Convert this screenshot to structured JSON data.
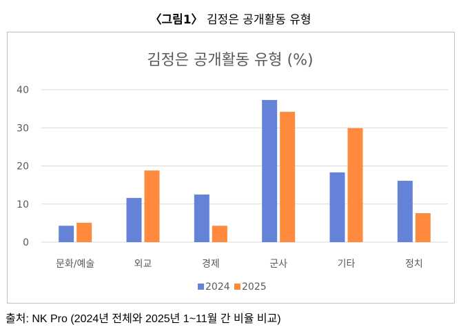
{
  "figure_label": "〈그림1〉",
  "figure_caption": "김정은 공개활동 유형",
  "source": "출처: NK Pro (2024년 전체와 2025년 1~11월 간 비율 비교)",
  "chart_data": {
    "type": "bar",
    "title": "김정은 공개활동 유형 (%)",
    "categories": [
      "문화/예술",
      "외교",
      "경제",
      "군사",
      "기타",
      "정치"
    ],
    "series": [
      {
        "name": "2024",
        "color": "#6483d8",
        "values": [
          4.3,
          11.6,
          12.5,
          37.3,
          18.3,
          16.1
        ]
      },
      {
        "name": "2025",
        "color": "#ff8a3d",
        "values": [
          5.1,
          18.8,
          4.3,
          34.2,
          29.9,
          7.6
        ]
      }
    ],
    "yticks": [
      0,
      10,
      20,
      30,
      40
    ],
    "ylim": [
      0,
      40
    ],
    "grid": true,
    "legend": "bottom",
    "xlabel": "",
    "ylabel": ""
  }
}
